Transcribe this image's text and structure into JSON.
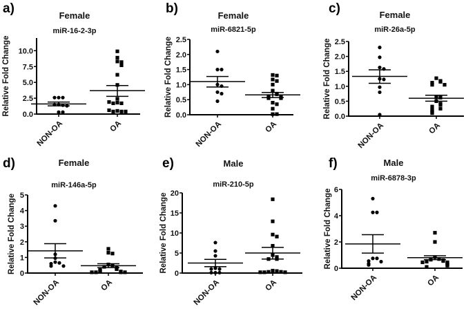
{
  "chart_data": [
    {
      "panel_label": "a)",
      "type": "scatter",
      "title": "Female",
      "subtitle": "miR-16-2-3p",
      "ylabel": "Relative Fold Change",
      "ylim": [
        0,
        12
      ],
      "yticks": [
        0,
        2.5,
        5,
        7.5,
        10
      ],
      "ytick_labels": [
        "0.0",
        "2.5",
        "5.0",
        "7.5",
        "10.0"
      ],
      "categories": [
        "NON-OA",
        "OA"
      ],
      "series": [
        {
          "name": "NON-OA",
          "marker": "circle",
          "values": [
            2.6,
            2.6,
            2.6,
            1.5,
            1.4,
            1.5,
            1.3,
            0.3,
            0.3
          ],
          "mean": 1.6,
          "sem_upper": 1.9,
          "sem_lower": 1.3
        },
        {
          "name": "OA",
          "marker": "square",
          "values": [
            9.9,
            8.9,
            8.3,
            8.2,
            7.7,
            6.2,
            4.6,
            2.4,
            1.8,
            1.7,
            1.7,
            1.9,
            0.5,
            0.4,
            0.4,
            0.4,
            0.6
          ],
          "mean": 3.7,
          "sem_upper": 4.5,
          "sem_lower": 2.8
        }
      ]
    },
    {
      "panel_label": "b)",
      "type": "scatter",
      "title": "Female",
      "subtitle": "miR-6821-5p",
      "ylabel": "Relative Fold Change",
      "ylim": [
        0,
        2.5
      ],
      "yticks": [
        0,
        0.5,
        1,
        1.5,
        2,
        2.5
      ],
      "ytick_labels": [
        "0.0",
        "0.5",
        "1.0",
        "1.5",
        "2.0",
        "2.5"
      ],
      "categories": [
        "NON-OA",
        "OA"
      ],
      "series": [
        {
          "name": "NON-OA",
          "marker": "circle",
          "values": [
            2.1,
            1.5,
            1.5,
            1.0,
            0.95,
            0.75,
            0.7,
            0.45
          ],
          "mean": 1.1,
          "sem_upper": 1.27,
          "sem_lower": 0.92
        },
        {
          "name": "OA",
          "marker": "square",
          "values": [
            1.32,
            1.3,
            1.17,
            1.12,
            1.0,
            0.8,
            0.7,
            0.68,
            0.62,
            0.6,
            0.55,
            0.55,
            0.4,
            0.35,
            0.2,
            0.02,
            0.02
          ],
          "mean": 0.66,
          "sem_upper": 0.74,
          "sem_lower": 0.57
        }
      ]
    },
    {
      "panel_label": "c)",
      "type": "scatter",
      "title": "Female",
      "subtitle": "miR-26a-5p",
      "ylabel": "Relative Fold Change",
      "ylim": [
        0,
        2.5
      ],
      "yticks": [
        0,
        0.5,
        1,
        1.5,
        2,
        2.5
      ],
      "ytick_labels": [
        "0.0",
        "0.5",
        "1.0",
        "1.5",
        "2.0",
        "2.5"
      ],
      "categories": [
        "NON-OA",
        "OA"
      ],
      "series": [
        {
          "name": "NON-OA",
          "marker": "circle",
          "values": [
            2.3,
            1.97,
            1.63,
            1.58,
            1.25,
            1.23,
            0.97,
            0.8,
            0.05
          ],
          "mean": 1.33,
          "sem_upper": 1.55,
          "sem_lower": 1.1
        },
        {
          "name": "OA",
          "marker": "square",
          "values": [
            1.27,
            1.18,
            1.15,
            1.12,
            1.05,
            1.05,
            0.63,
            0.62,
            0.5,
            0.42,
            0.38,
            0.32,
            0.25,
            0.22,
            0.18,
            0.12,
            0.1
          ],
          "mean": 0.6,
          "sem_upper": 0.7,
          "sem_lower": 0.5
        }
      ]
    },
    {
      "panel_label": "d)",
      "type": "scatter",
      "title": "Female",
      "subtitle": "miR-146a-5p",
      "ylabel": "Relative Fold Change",
      "ylim": [
        0,
        5
      ],
      "yticks": [
        0,
        1,
        2,
        3,
        4,
        5
      ],
      "ytick_labels": [
        "0",
        "1",
        "2",
        "3",
        "4",
        "5"
      ],
      "categories": [
        "NON-OA",
        "OA"
      ],
      "series": [
        {
          "name": "NON-OA",
          "marker": "circle",
          "values": [
            4.3,
            3.35,
            1.2,
            0.95,
            0.7,
            0.65,
            0.6,
            0.45,
            0.45
          ],
          "mean": 1.42,
          "sem_upper": 1.88,
          "sem_lower": 0.97
        },
        {
          "name": "OA",
          "marker": "square",
          "values": [
            1.55,
            1.3,
            1.25,
            0.55,
            0.5,
            0.4,
            0.35,
            0.3,
            0.25,
            0.2,
            0.15,
            0.1,
            0.1,
            0.05,
            0.05,
            0.05,
            0.05
          ],
          "mean": 0.47,
          "sem_upper": 0.6,
          "sem_lower": 0.35
        }
      ]
    },
    {
      "panel_label": "e)",
      "type": "scatter",
      "title": "Male",
      "subtitle": "miR-210-5p",
      "ylabel": "Relative Fold Change",
      "ylim": [
        0,
        20
      ],
      "yticks": [
        0,
        5,
        10,
        15,
        20
      ],
      "ytick_labels": [
        "0",
        "5",
        "10",
        "15",
        "20"
      ],
      "categories": [
        "NON-OA",
        "OA"
      ],
      "series": [
        {
          "name": "NON-OA",
          "marker": "circle",
          "values": [
            7.6,
            5.5,
            4.3,
            1.2,
            1.0,
            1.0,
            0.1,
            0.1,
            0.1
          ],
          "mean": 2.5,
          "sem_upper": 3.4,
          "sem_lower": 1.6
        },
        {
          "name": "OA",
          "marker": "square",
          "values": [
            18.4,
            12.9,
            9.6,
            9.1,
            6.8,
            4.5,
            4.0,
            3.5,
            3.5,
            0.6,
            0.5,
            0.3,
            0.3,
            0.2,
            0.2,
            0.2
          ],
          "mean": 5.0,
          "sem_upper": 6.4,
          "sem_lower": 3.5
        }
      ]
    },
    {
      "panel_label": "f)",
      "type": "scatter",
      "title": "Male",
      "subtitle": "miR-6878-3p",
      "ylabel": "Relative Fold Change",
      "ylim": [
        0,
        6
      ],
      "yticks": [
        0,
        2,
        4,
        6
      ],
      "ytick_labels": [
        "0",
        "2",
        "4",
        "6"
      ],
      "categories": [
        "NON-OA",
        "OA"
      ],
      "series": [
        {
          "name": "NON-OA",
          "marker": "circle",
          "values": [
            5.3,
            4.25,
            4.25,
            0.75,
            0.75,
            0.55,
            0.5,
            0.35,
            0.25
          ],
          "mean": 1.85,
          "sem_upper": 2.55,
          "sem_lower": 1.15
        },
        {
          "name": "OA",
          "marker": "square",
          "values": [
            2.7,
            2.0,
            0.85,
            0.7,
            0.65,
            0.6,
            0.55,
            0.5,
            0.45,
            0.45,
            0.35,
            0.3,
            0.25,
            0.2,
            0.1
          ],
          "mean": 0.8,
          "sem_upper": 0.95,
          "sem_lower": 0.65
        }
      ]
    }
  ]
}
